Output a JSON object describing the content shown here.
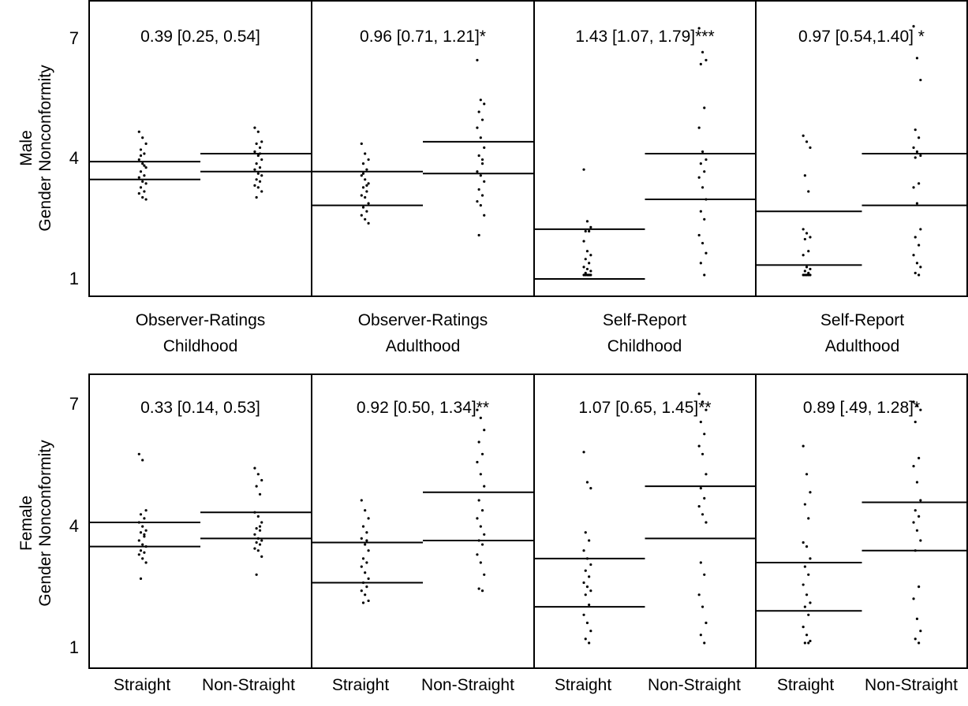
{
  "rows": [
    {
      "ylabel_line1": "Male",
      "ylabel_line2": "Gender Nonconformity",
      "yticks": [
        "1",
        "4",
        "7"
      ],
      "panel_labels": [
        [
          "Observer-Ratings",
          "Childhood"
        ],
        [
          "Observer-Ratings",
          "Adulthood"
        ],
        [
          "Self-Report",
          "Childhood"
        ],
        [
          "Self-Report",
          "Adulthood"
        ]
      ]
    },
    {
      "ylabel_line1": "Female",
      "ylabel_line2": "Gender Nonconformity",
      "yticks": [
        "1",
        "4",
        "7"
      ],
      "group_labels": [
        "Straight",
        "Non-Straight",
        "Straight",
        "Non-Straight",
        "Straight",
        "Non-Straight",
        "Straight",
        "Non-Straight"
      ]
    }
  ],
  "chart_data": [
    {
      "type": "scatter",
      "row": "Male",
      "panel": "Observer-Ratings Childhood",
      "annotation": "0.39 [0.25, 0.54]",
      "ylim": [
        0.6,
        7.6
      ],
      "groups": [
        "Straight",
        "Non-Straight"
      ],
      "lines": {
        "Straight": [
          3.85,
          3.4
        ],
        "Non-Straight": [
          4.05,
          3.6
        ]
      },
      "points": {
        "Straight": [
          4.6,
          4.45,
          4.3,
          4.15,
          4.05,
          3.9,
          3.8,
          3.7,
          3.6,
          3.5,
          3.45,
          3.35,
          3.3,
          3.2,
          3.1,
          3.05,
          2.95,
          2.9,
          4.0,
          3.75
        ],
        "Non-Straight": [
          4.7,
          4.6,
          4.35,
          4.3,
          4.2,
          4.1,
          4.0,
          3.9,
          3.8,
          3.7,
          3.65,
          3.55,
          3.5,
          3.4,
          3.35,
          3.25,
          3.2,
          3.1,
          2.95,
          4.05
        ]
      }
    },
    {
      "type": "scatter",
      "row": "Male",
      "panel": "Observer-Ratings Adulthood",
      "annotation": "0.96 [0.71, 1.21]*",
      "ylim": [
        0.6,
        7.6
      ],
      "groups": [
        "Straight",
        "Non-Straight"
      ],
      "lines": {
        "Straight": [
          3.6,
          2.75
        ],
        "Non-Straight": [
          4.35,
          3.55
        ]
      },
      "points": {
        "Straight": [
          4.3,
          4.05,
          3.9,
          3.8,
          3.65,
          3.5,
          3.4,
          3.3,
          3.2,
          3.1,
          3.0,
          2.95,
          2.8,
          2.7,
          2.6,
          2.5,
          2.4,
          2.3,
          3.55,
          3.25
        ],
        "Non-Straight": [
          6.4,
          5.4,
          5.3,
          5.1,
          4.9,
          4.7,
          4.45,
          4.2,
          4.0,
          3.8,
          3.6,
          3.5,
          3.35,
          3.15,
          3.0,
          2.85,
          2.75,
          2.5,
          2.0,
          3.9
        ]
      }
    },
    {
      "type": "scatter",
      "row": "Male",
      "panel": "Self-Report Childhood",
      "annotation": "1.43 [1.07, 1.79]***",
      "ylim": [
        0.6,
        7.6
      ],
      "groups": [
        "Straight",
        "Non-Straight"
      ],
      "lines": {
        "Straight": [
          2.15,
          0.9
        ],
        "Non-Straight": [
          4.05,
          2.9
        ]
      },
      "points": {
        "Straight": [
          3.65,
          2.35,
          2.2,
          2.1,
          2.1,
          1.85,
          1.6,
          1.5,
          1.4,
          1.3,
          1.2,
          1.15,
          1.1,
          1.05,
          1.0,
          1.0,
          1.0,
          1.0,
          1.0,
          1.0
        ],
        "Non-Straight": [
          7.2,
          6.6,
          6.4,
          6.3,
          5.2,
          4.7,
          4.1,
          3.9,
          3.8,
          3.6,
          3.45,
          3.2,
          2.9,
          2.6,
          2.4,
          2.0,
          1.8,
          1.55,
          1.3,
          1.0
        ]
      }
    },
    {
      "type": "scatter",
      "row": "Male",
      "panel": "Self-Report Adulthood",
      "annotation": "0.97 [0.54,1.40] *",
      "ylim": [
        0.6,
        7.6
      ],
      "groups": [
        "Straight",
        "Non-Straight"
      ],
      "lines": {
        "Straight": [
          2.6,
          1.25
        ],
        "Non-Straight": [
          4.05,
          2.75
        ]
      },
      "points": {
        "Straight": [
          4.5,
          4.35,
          4.2,
          3.5,
          3.1,
          2.15,
          2.05,
          1.95,
          1.9,
          1.6,
          1.5,
          1.2,
          1.15,
          1.1,
          1.05,
          1.0,
          1.0,
          1.0,
          1.0,
          1.0
        ],
        "Non-Straight": [
          7.25,
          6.45,
          5.9,
          4.65,
          4.45,
          4.2,
          4.1,
          4.0,
          3.95,
          3.3,
          3.2,
          2.8,
          2.15,
          1.95,
          1.75,
          1.5,
          1.3,
          1.2,
          1.05,
          1.0
        ]
      }
    },
    {
      "type": "scatter",
      "row": "Female",
      "panel": "Observer-Ratings Childhood",
      "annotation": "0.33 [0.14, 0.53]",
      "ylim": [
        0.6,
        7.6
      ],
      "groups": [
        "Straight",
        "Non-Straight"
      ],
      "lines": {
        "Straight": [
          4.0,
          3.4
        ],
        "Non-Straight": [
          4.25,
          3.6
        ]
      },
      "points": {
        "Straight": [
          5.7,
          5.55,
          4.3,
          4.2,
          4.1,
          4.0,
          3.9,
          3.8,
          3.75,
          3.65,
          3.55,
          3.45,
          3.4,
          3.3,
          3.25,
          3.2,
          3.1,
          3.0,
          2.6,
          3.7
        ],
        "Non-Straight": [
          5.35,
          5.2,
          5.05,
          4.9,
          4.7,
          4.25,
          4.15,
          4.0,
          3.85,
          3.8,
          3.7,
          3.6,
          3.55,
          3.5,
          3.45,
          3.35,
          3.3,
          3.15,
          2.7,
          3.9
        ]
      }
    },
    {
      "type": "scatter",
      "row": "Female",
      "panel": "Observer-Ratings Adulthood",
      "annotation": "0.92 [0.50, 1.34]**",
      "ylim": [
        0.6,
        7.6
      ],
      "groups": [
        "Straight",
        "Non-Straight"
      ],
      "lines": {
        "Straight": [
          3.5,
          2.5
        ],
        "Non-Straight": [
          4.75,
          3.55
        ]
      },
      "points": {
        "Straight": [
          4.55,
          4.3,
          4.1,
          3.9,
          3.75,
          3.6,
          3.45,
          3.3,
          3.1,
          3.0,
          2.9,
          2.75,
          2.6,
          2.5,
          2.4,
          2.3,
          2.2,
          2.05,
          2.0,
          3.55
        ],
        "Non-Straight": [
          6.8,
          6.6,
          6.3,
          6.0,
          5.7,
          5.5,
          5.2,
          4.9,
          4.55,
          4.3,
          4.1,
          3.9,
          3.7,
          3.55,
          3.45,
          3.2,
          3.0,
          2.7,
          2.35,
          2.3
        ]
      }
    },
    {
      "type": "scatter",
      "row": "Female",
      "panel": "Self-Report Childhood",
      "annotation": "1.07 [0.65, 1.45]**",
      "ylim": [
        0.6,
        7.6
      ],
      "groups": [
        "Straight",
        "Non-Straight"
      ],
      "lines": {
        "Straight": [
          3.1,
          1.9
        ],
        "Non-Straight": [
          4.9,
          3.6
        ]
      },
      "points": {
        "Straight": [
          5.75,
          5.0,
          4.85,
          3.75,
          3.55,
          3.3,
          3.1,
          2.95,
          2.8,
          2.65,
          2.5,
          2.4,
          2.3,
          2.2,
          1.95,
          1.7,
          1.5,
          1.3,
          1.1,
          1.0
        ],
        "Non-Straight": [
          7.2,
          7.0,
          6.8,
          6.5,
          6.2,
          5.9,
          5.7,
          5.2,
          4.85,
          4.6,
          4.4,
          4.2,
          4.0,
          3.0,
          2.7,
          2.2,
          1.9,
          1.5,
          1.2,
          1.0
        ]
      }
    },
    {
      "type": "scatter",
      "row": "Female",
      "panel": "Self-Report Adulthood",
      "annotation": "0.89 [.49, 1.28]*",
      "ylim": [
        0.6,
        7.6
      ],
      "groups": [
        "Straight",
        "Non-Straight"
      ],
      "lines": {
        "Straight": [
          3.0,
          1.8
        ],
        "Non-Straight": [
          4.5,
          3.3
        ]
      },
      "points": {
        "Straight": [
          5.9,
          5.2,
          4.75,
          4.45,
          4.1,
          3.5,
          3.4,
          3.1,
          2.9,
          2.7,
          2.45,
          2.2,
          2.0,
          1.9,
          1.7,
          1.4,
          1.2,
          1.05,
          1.0,
          1.0
        ],
        "Non-Straight": [
          7.0,
          6.9,
          6.8,
          6.5,
          5.6,
          5.4,
          5.0,
          4.55,
          4.3,
          4.15,
          4.0,
          3.8,
          3.55,
          3.3,
          2.4,
          2.1,
          1.6,
          1.3,
          1.1,
          1.0
        ]
      }
    }
  ]
}
